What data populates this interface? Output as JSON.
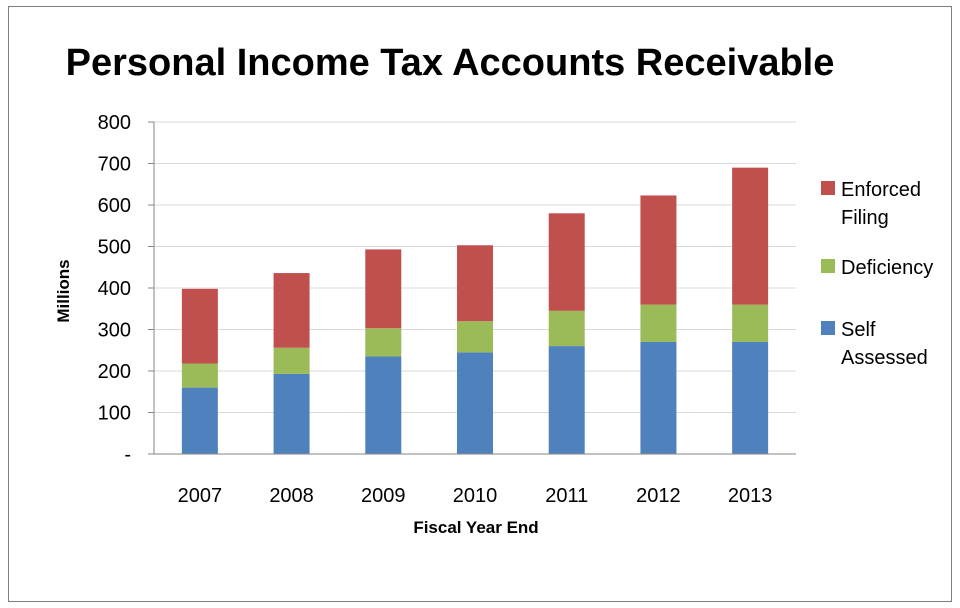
{
  "chart_data": {
    "type": "bar",
    "stacked": true,
    "title": "Personal Income Tax Accounts Receivable",
    "xlabel": "Fiscal Year End",
    "ylabel": "Millions",
    "categories": [
      "2007",
      "2008",
      "2009",
      "2010",
      "2011",
      "2012",
      "2013"
    ],
    "ylim": [
      0,
      800
    ],
    "yticks": [
      {
        "value": 0,
        "label": "-"
      },
      {
        "value": 100,
        "label": "100"
      },
      {
        "value": 200,
        "label": "200"
      },
      {
        "value": 300,
        "label": "300"
      },
      {
        "value": 400,
        "label": "400"
      },
      {
        "value": 500,
        "label": "500"
      },
      {
        "value": 600,
        "label": "600"
      },
      {
        "value": 700,
        "label": "700"
      },
      {
        "value": 800,
        "label": "800"
      }
    ],
    "grid": true,
    "legend_position": "right",
    "series": [
      {
        "name": "Self Assessed",
        "legend_lines": [
          "Self",
          "Assessed"
        ],
        "color": "#4f81bd",
        "values": [
          160,
          193,
          235,
          245,
          260,
          270,
          270
        ]
      },
      {
        "name": "Deficiency",
        "legend_lines": [
          "Deficiency"
        ],
        "color": "#9bbb59",
        "values": [
          58,
          63,
          68,
          75,
          85,
          90,
          90
        ]
      },
      {
        "name": "Enforced Filing",
        "legend_lines": [
          "Enforced",
          "Filing"
        ],
        "color": "#c0504d",
        "values": [
          180,
          180,
          190,
          183,
          235,
          263,
          330
        ]
      }
    ]
  }
}
